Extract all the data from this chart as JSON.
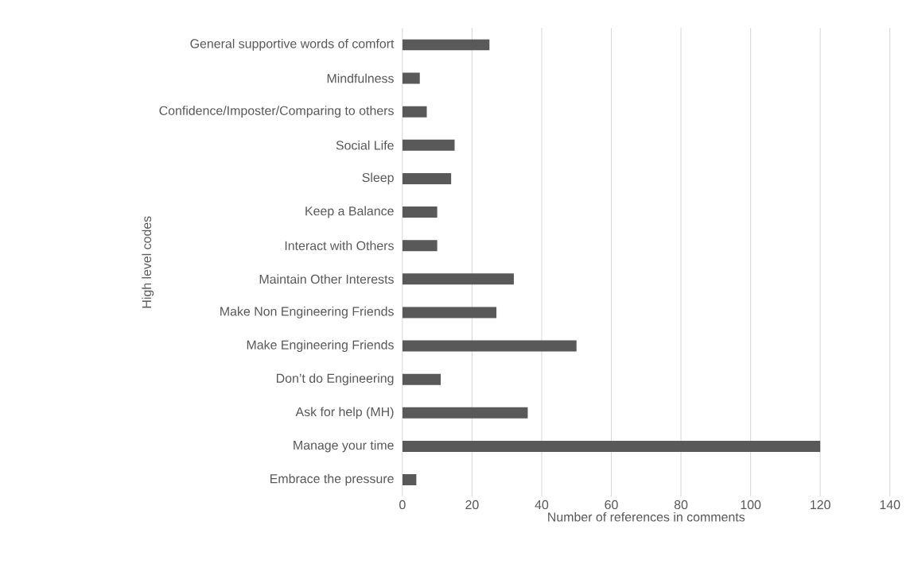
{
  "chart_data": {
    "type": "bar",
    "orientation": "horizontal",
    "xlabel": "Number of references  in comments",
    "ylabel": "High level codes",
    "categories": [
      "General supportive words of comfort",
      "Mindfulness",
      "Confidence/Imposter/Comparing to others",
      "Social Life",
      "Sleep",
      "Keep a Balance",
      "Interact with Others",
      "Maintain Other Interests",
      "Make Non Engineering Friends",
      "Make Engineering Friends",
      "Don’t do Engineering",
      "Ask for help (MH)",
      "Manage your time",
      "Embrace the pressure"
    ],
    "values": [
      25,
      5,
      7,
      15,
      14,
      10,
      10,
      32,
      27,
      50,
      11,
      36,
      120,
      4
    ],
    "color": "#595959",
    "xlim": [
      0,
      140
    ],
    "xticks": [
      0,
      20,
      40,
      60,
      80,
      100,
      120,
      140
    ],
    "grid": "x"
  }
}
